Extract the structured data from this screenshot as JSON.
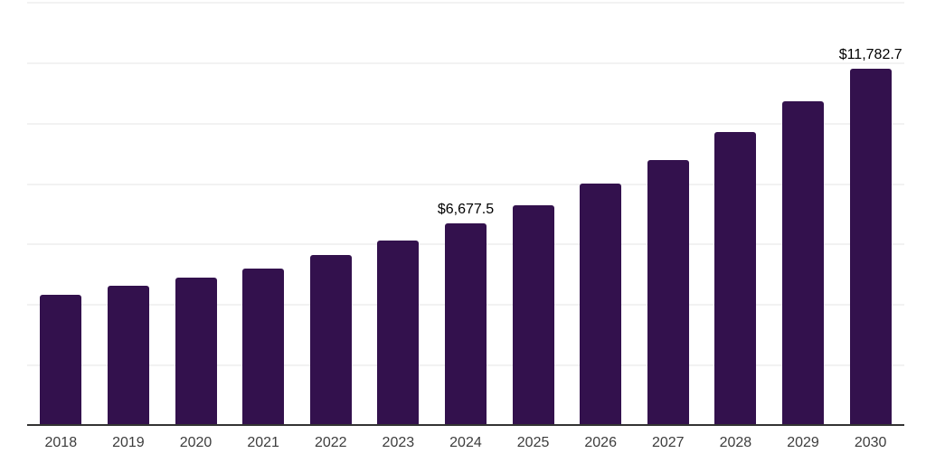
{
  "theme": {
    "background_color": "#ffffff",
    "bar_color": "#33114d",
    "axis_color": "#333333",
    "gridline_color": "#f2f2f2",
    "tick_label_color": "#3d3d3d",
    "data_label_color": "#000000"
  },
  "chart_data": {
    "type": "bar",
    "title": "",
    "xlabel": "",
    "ylabel": "",
    "categories": [
      "2018",
      "2019",
      "2020",
      "2021",
      "2022",
      "2023",
      "2024",
      "2025",
      "2026",
      "2027",
      "2028",
      "2029",
      "2030"
    ],
    "values": [
      4300,
      4620,
      4890,
      5170,
      5610,
      6110,
      6677.5,
      7260,
      7975,
      8780,
      9690,
      10715,
      11782.7
    ],
    "labeled_points": [
      {
        "category": "2024",
        "label": "$6,677.5"
      },
      {
        "category": "2030",
        "label": "$11,782.7"
      }
    ],
    "ylim": [
      0,
      14000
    ],
    "grid_step": 2000,
    "grid": true,
    "legend": false,
    "y_axis_labels_visible": false
  }
}
